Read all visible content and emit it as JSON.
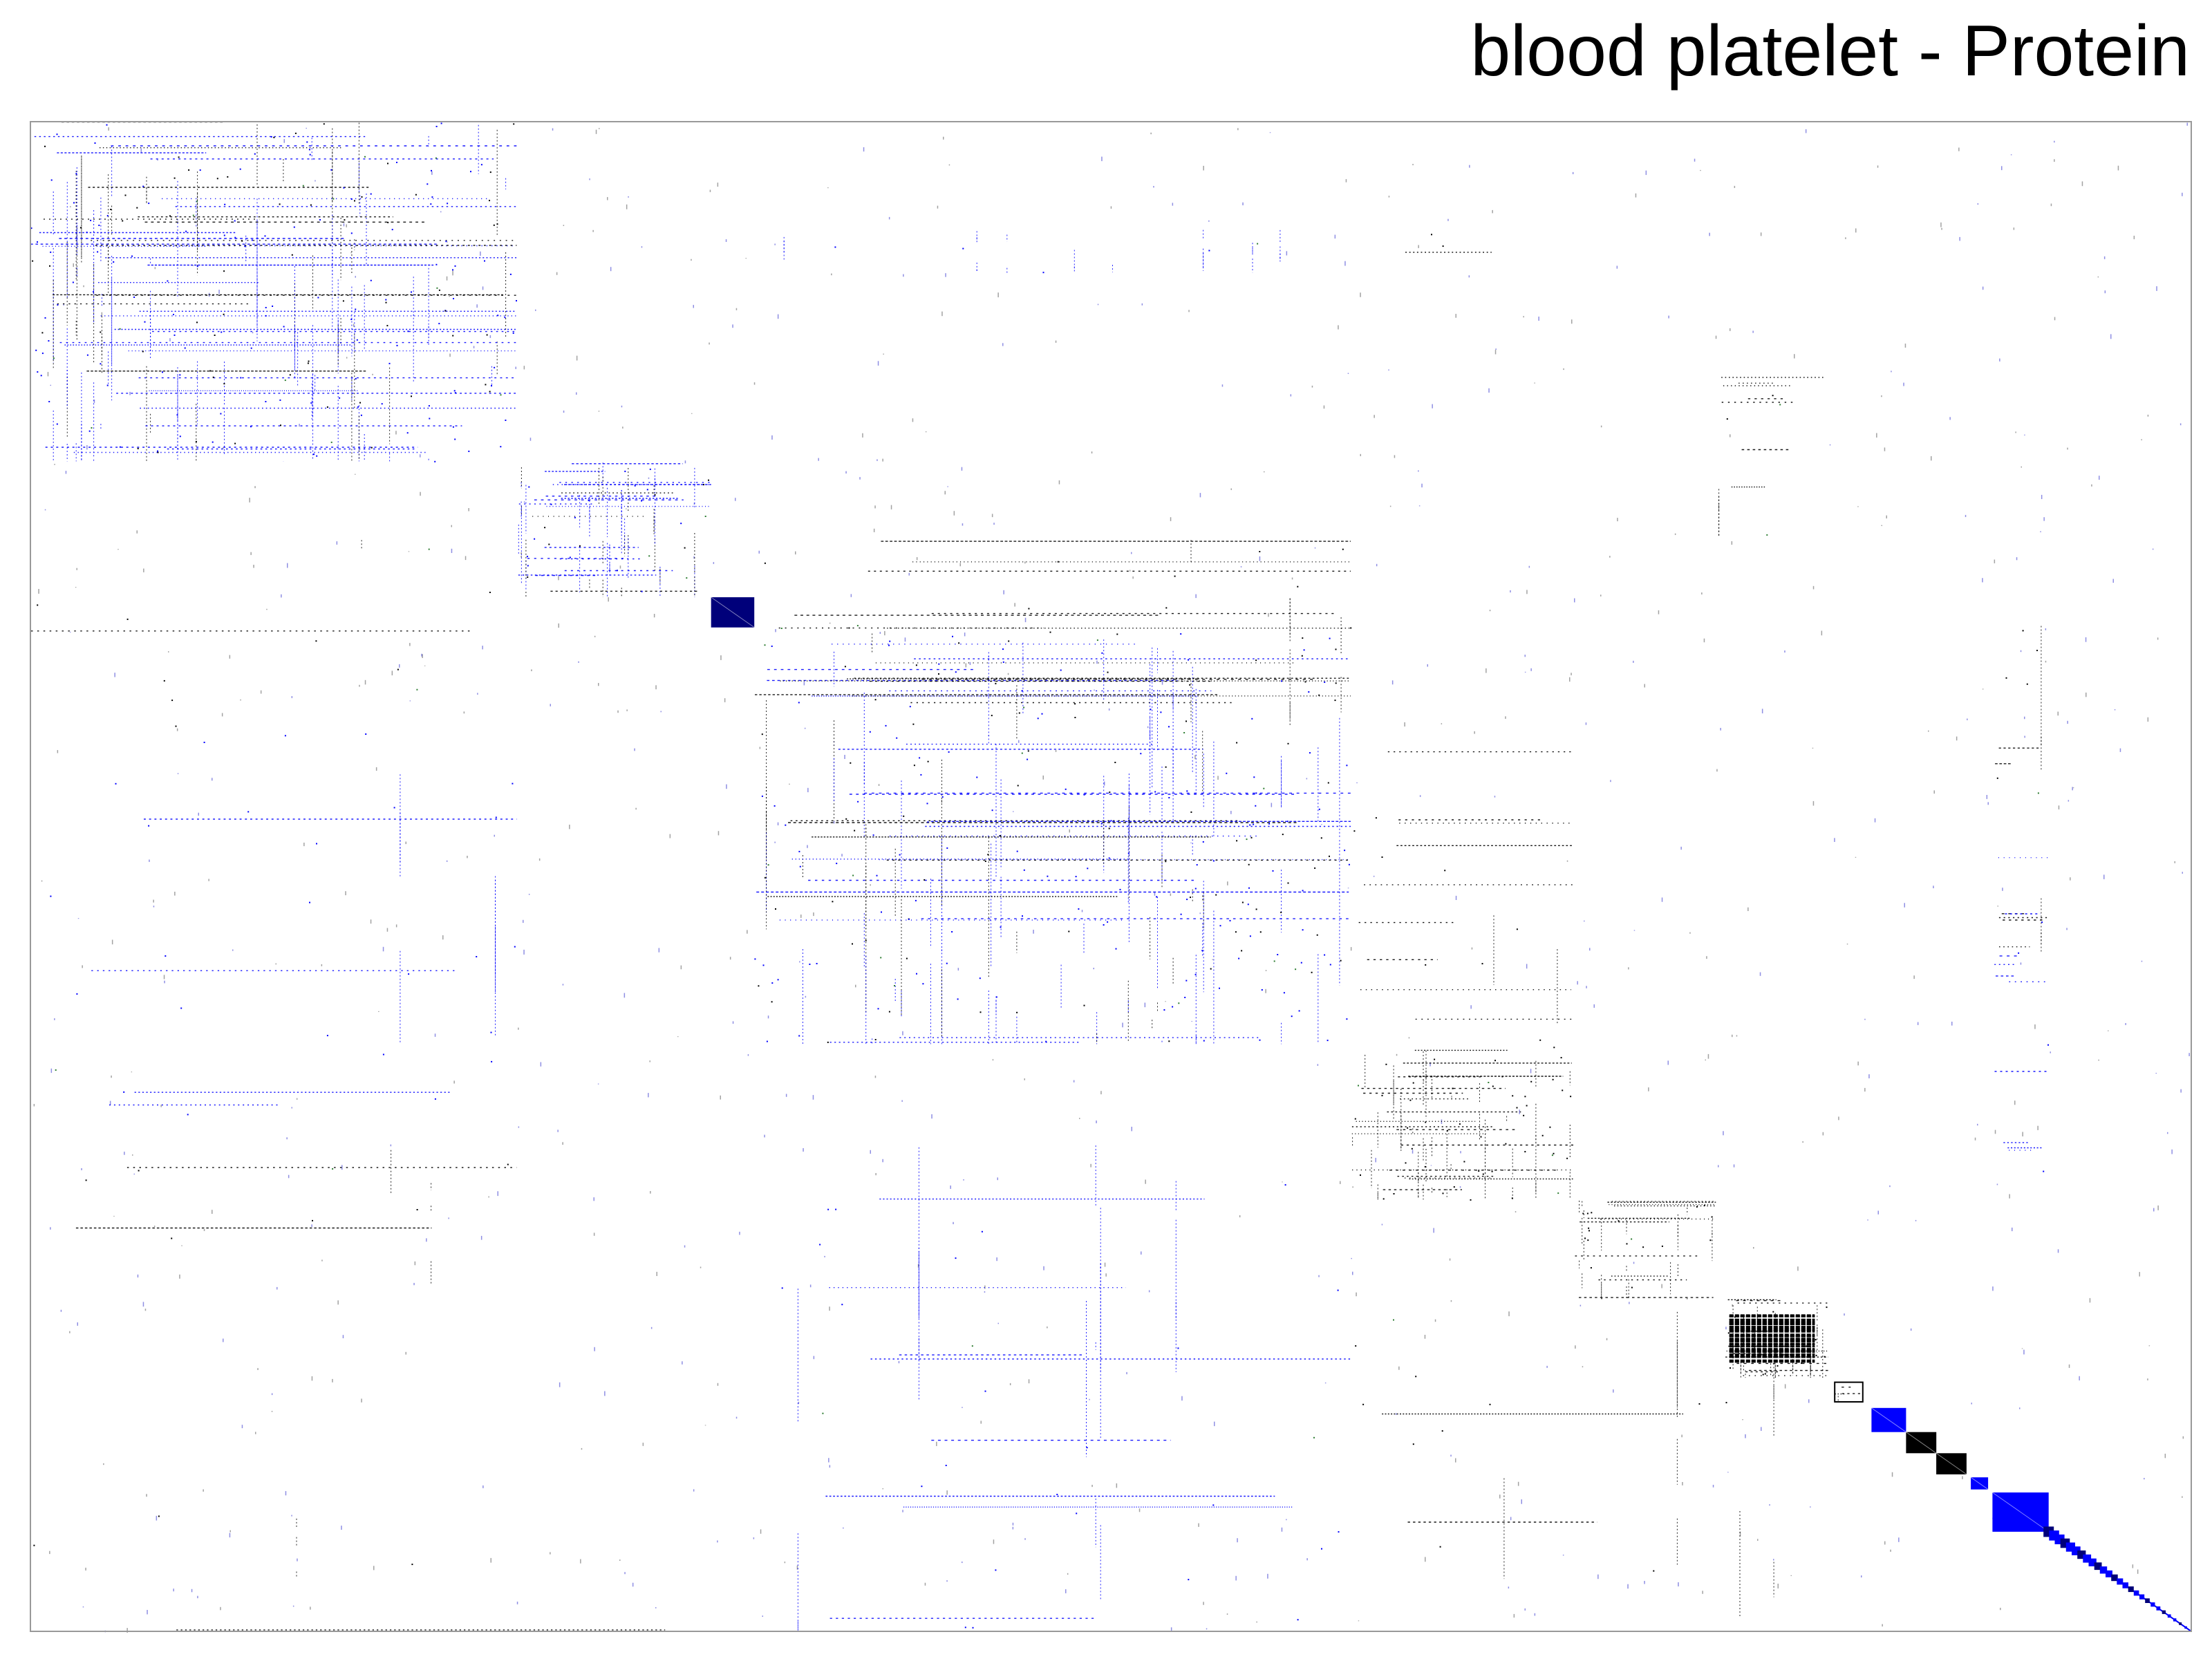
{
  "chart_data": {
    "type": "heatmap",
    "title": "blood platelet - Protein",
    "xlabel": "",
    "ylabel": "",
    "grid": false,
    "colors": {
      "dense": "#000000",
      "blue": "#0000ff",
      "navy": "#00007a",
      "green": "#2e7d32",
      "frame": "#999999"
    },
    "value_scale": "fraction of matrix dimension (0 = top/left, 1 = bottom/right), ordered along diagonal",
    "diagonal_blocks": [
      {
        "from": 0.0,
        "to": 0.225,
        "color": "blue",
        "density": 0.55,
        "style": "sparse-mixed"
      },
      {
        "from": 0.225,
        "to": 0.315,
        "color": "blue",
        "density": 0.45,
        "style": "sparse-mixed"
      },
      {
        "from": 0.315,
        "to": 0.335,
        "color": "navy",
        "density": 1.0,
        "style": "solid"
      },
      {
        "from": 0.335,
        "to": 0.611,
        "color": "blue",
        "density": 0.4,
        "style": "sparse-mixed"
      },
      {
        "from": 0.611,
        "to": 0.714,
        "color": "dense",
        "density": 0.6,
        "style": "sparse-dense"
      },
      {
        "from": 0.714,
        "to": 0.78,
        "color": "dense",
        "density": 0.55,
        "style": "sparse-dense"
      },
      {
        "from": 0.78,
        "to": 0.832,
        "color": "dense",
        "density": 0.85,
        "style": "sparse-dense"
      },
      {
        "from": 0.835,
        "to": 0.848,
        "color": "dense",
        "density": 0.4,
        "style": "outline"
      },
      {
        "from": 0.852,
        "to": 0.868,
        "color": "blue",
        "density": 1.0,
        "style": "solid"
      },
      {
        "from": 0.868,
        "to": 0.882,
        "color": "dense",
        "density": 1.0,
        "style": "solid"
      },
      {
        "from": 0.882,
        "to": 0.896,
        "color": "dense",
        "density": 1.0,
        "style": "solid"
      },
      {
        "from": 0.898,
        "to": 0.906,
        "color": "blue",
        "density": 1.0,
        "style": "solid"
      },
      {
        "from": 0.908,
        "to": 0.934,
        "color": "blue",
        "density": 1.0,
        "style": "solid"
      },
      {
        "from": 0.934,
        "to": 1.0,
        "color": "blue",
        "density": 1.0,
        "style": "diagonal-chain"
      }
    ],
    "off_diagonal_features": [
      {
        "x": [
          0.0,
          0.225
        ],
        "y": [
          0.275,
          0.4
        ],
        "color": "dense",
        "density": 0.05
      },
      {
        "x": [
          0.0,
          0.225
        ],
        "y": [
          0.4,
          0.66
        ],
        "color": "blue",
        "density": 0.06
      },
      {
        "x": [
          0.0,
          0.225
        ],
        "y": [
          0.66,
          0.77
        ],
        "color": "dense",
        "density": 0.04
      },
      {
        "x": [
          0.0,
          0.315
        ],
        "y": [
          0.92,
          1.0
        ],
        "color": "dense",
        "density": 0.02
      },
      {
        "x": [
          0.335,
          0.611
        ],
        "y": [
          0.07,
          0.1
        ],
        "color": "blue",
        "density": 0.08
      },
      {
        "x": [
          0.335,
          0.611
        ],
        "y": [
          0.275,
          0.4
        ],
        "color": "dense",
        "density": 0.07
      },
      {
        "x": [
          0.335,
          0.611
        ],
        "y": [
          0.675,
          1.0
        ],
        "color": "blue",
        "density": 0.04
      },
      {
        "x": [
          0.611,
          0.714
        ],
        "y": [
          0.07,
          0.1
        ],
        "color": "dense",
        "density": 0.12
      },
      {
        "x": [
          0.611,
          0.714
        ],
        "y": [
          0.4,
          0.66
        ],
        "color": "dense",
        "density": 0.05
      },
      {
        "x": [
          0.611,
          0.832
        ],
        "y": [
          0.77,
          0.99
        ],
        "color": "dense",
        "density": 0.03
      },
      {
        "x": [
          0.78,
          0.832
        ],
        "y": [
          0.16,
          0.275
        ],
        "color": "dense",
        "density": 0.1
      },
      {
        "x": [
          0.908,
          0.934
        ],
        "y": [
          0.275,
          0.55
        ],
        "color": "dense",
        "density": 0.12
      },
      {
        "x": [
          0.908,
          0.934
        ],
        "y": [
          0.48,
          0.7
        ],
        "color": "blue",
        "density": 0.1
      }
    ]
  }
}
